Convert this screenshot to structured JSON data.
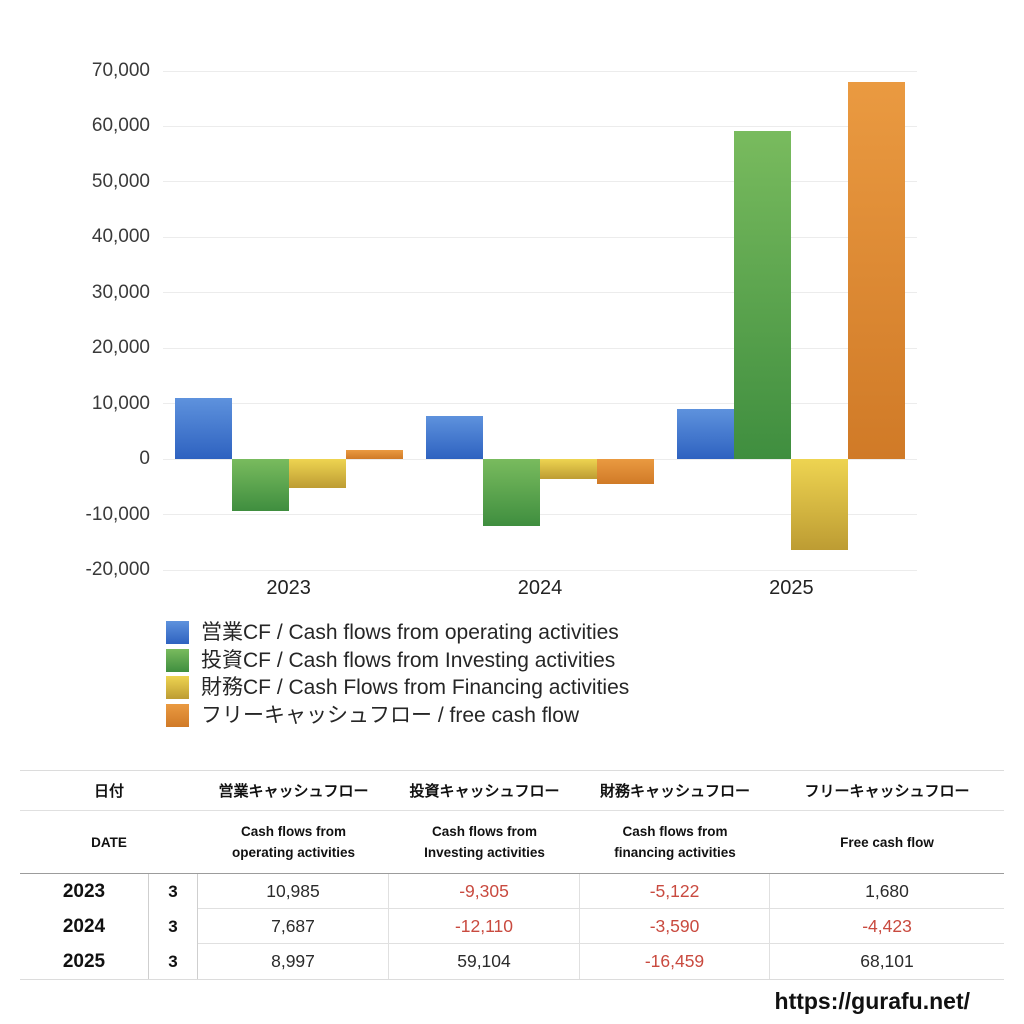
{
  "chart_data": {
    "type": "bar",
    "title": "",
    "xlabel": "",
    "ylabel": "",
    "grid": true,
    "legend_position": "bottom",
    "ylim": [
      -20000,
      70000
    ],
    "ytick_values": [
      70000,
      60000,
      50000,
      40000,
      30000,
      20000,
      10000,
      0,
      -10000,
      -20000
    ],
    "ytick_labels": [
      "70,000",
      "60,000",
      "50,000",
      "40,000",
      "30,000",
      "20,000",
      "10,000",
      "0",
      "-10,000",
      "-20,000"
    ],
    "categories": [
      "2023",
      "2024",
      "2025"
    ],
    "series": [
      {
        "key": "operating-cf",
        "name": "営業CF / Cash flows from operating activities",
        "values": [
          10985,
          7687,
          8997
        ],
        "color_top": "#5e92dd",
        "color_bottom": "#2e62c0"
      },
      {
        "key": "investing-cf",
        "name": "投資CF / Cash flows from Investing activities",
        "values": [
          -9305,
          -12110,
          59104
        ],
        "color_top": "#79bb5e",
        "color_bottom": "#3f8e3f"
      },
      {
        "key": "financing-cf",
        "name": "財務CF / Cash Flows from Financing activities",
        "values": [
          -5122,
          -3590,
          -16459
        ],
        "color_top": "#eed451",
        "color_bottom": "#bd9c33"
      },
      {
        "key": "free-cash-flow",
        "name": "フリーキャッシュフロー / free cash flow",
        "values": [
          1680,
          -4423,
          68101
        ],
        "color_top": "#ea9a41",
        "color_bottom": "#d07a27"
      }
    ]
  },
  "table": {
    "header_jp": [
      "日付",
      "営業キャッシュフロー",
      "投資キャッシュフロー",
      "財務キャッシュフロー",
      "フリーキャッシュフロー"
    ],
    "header_en": [
      "DATE",
      "Cash flows from\noperating activities",
      "Cash flows from\nInvesting activities",
      "Cash flows from\nfinancing activities",
      "Free cash flow"
    ],
    "rows": [
      {
        "year": "2023",
        "month": "3",
        "values": [
          "10,985",
          "-9,305",
          "-5,122",
          "1,680"
        ]
      },
      {
        "year": "2024",
        "month": "3",
        "values": [
          "7,687",
          "-12,110",
          "-3,590",
          "-4,423"
        ]
      },
      {
        "year": "2025",
        "month": "3",
        "values": [
          "8,997",
          "59,104",
          "-16,459",
          "68,101"
        ]
      }
    ],
    "negative_color": "#c94a3f"
  },
  "footer": {
    "url": "https://gurafu.net/"
  }
}
